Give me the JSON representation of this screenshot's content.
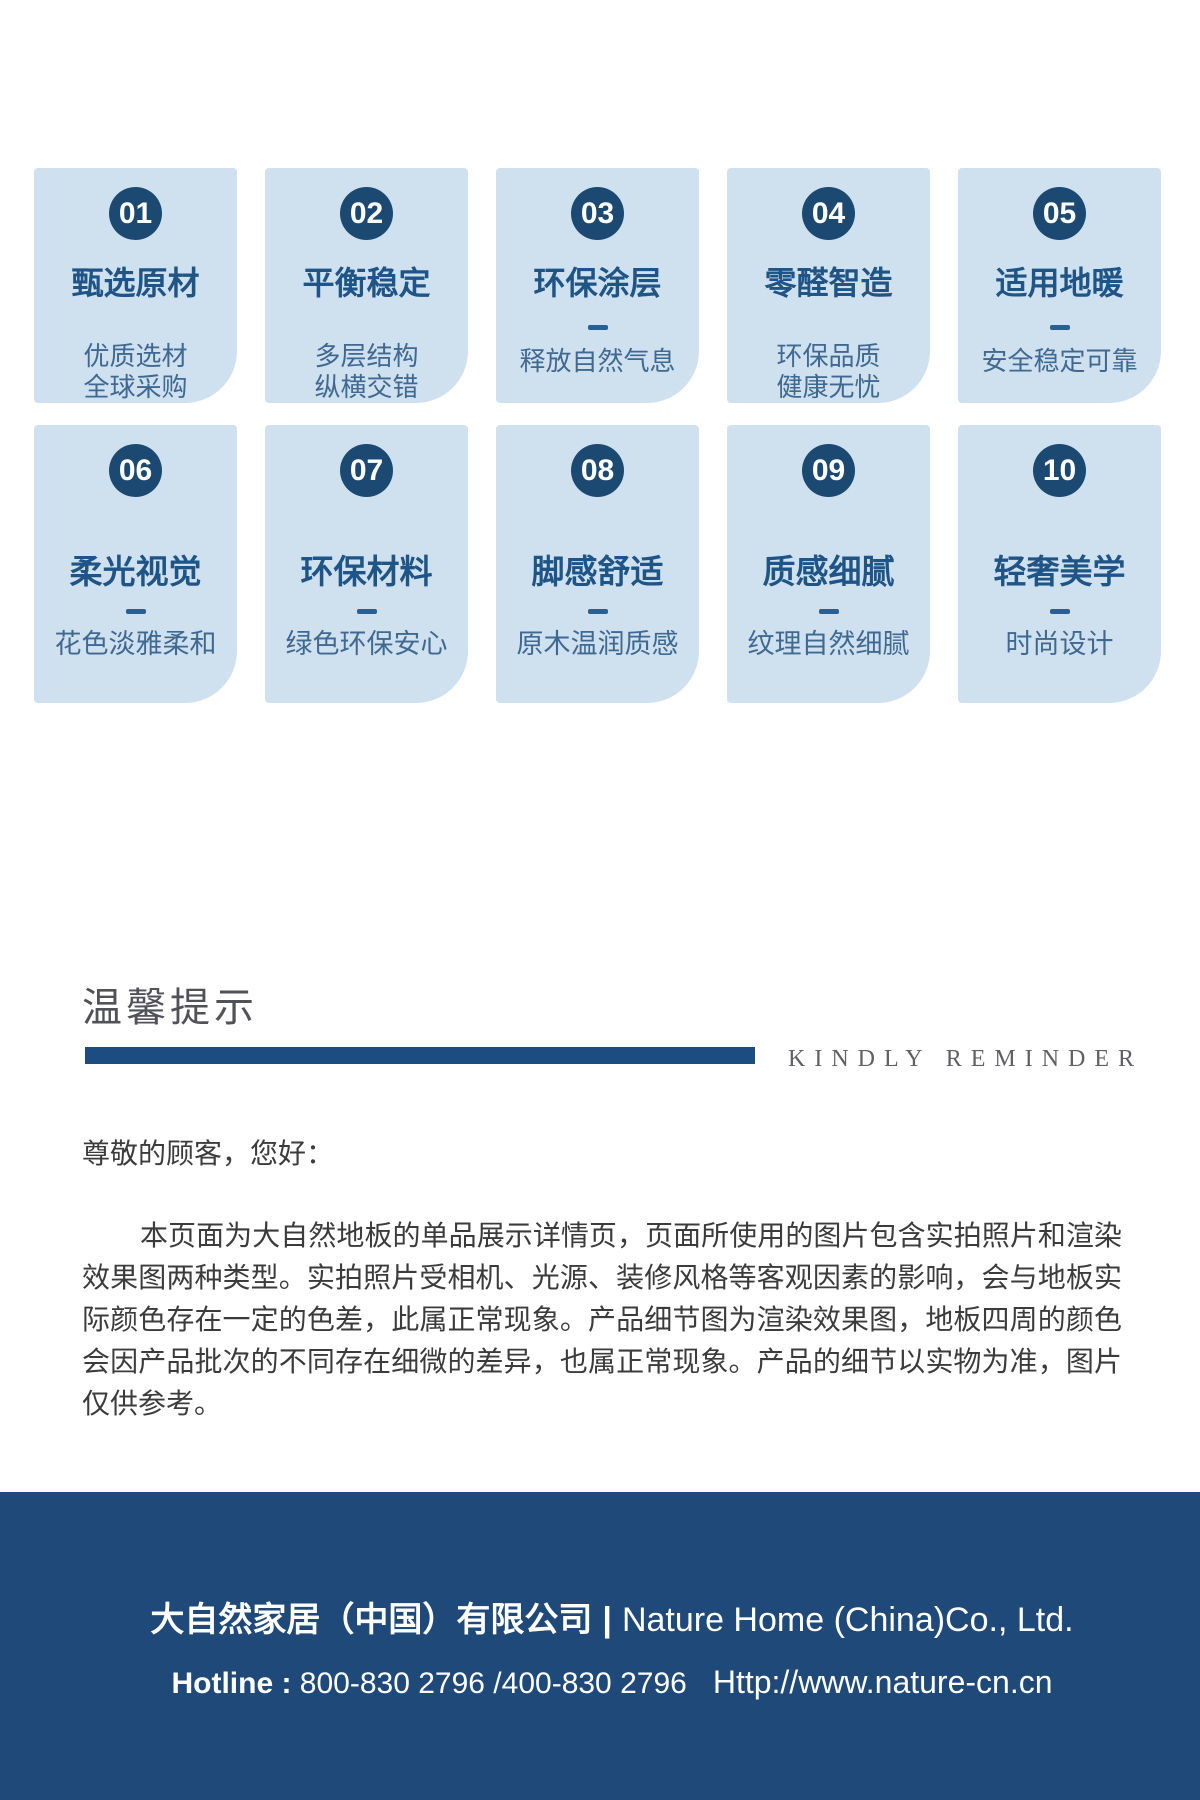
{
  "cards": [
    {
      "num": "01",
      "title": "甄选原材",
      "subtitle": "优质选材\n全球采购"
    },
    {
      "num": "02",
      "title": "平衡稳定",
      "subtitle": "多层结构\n纵横交错"
    },
    {
      "num": "03",
      "title": "环保涂层",
      "subtitle": "释放自然气息"
    },
    {
      "num": "04",
      "title": "零醛智造",
      "subtitle": "环保品质\n健康无忧"
    },
    {
      "num": "05",
      "title": "适用地暖",
      "subtitle": "安全稳定可靠"
    },
    {
      "num": "06",
      "title": "柔光视觉",
      "subtitle": "花色淡雅柔和"
    },
    {
      "num": "07",
      "title": "环保材料",
      "subtitle": "绿色环保安心"
    },
    {
      "num": "08",
      "title": "脚感舒适",
      "subtitle": "原木温润质感"
    },
    {
      "num": "09",
      "title": "质感细腻",
      "subtitle": "纹理自然细腻"
    },
    {
      "num": "10",
      "title": "轻奢美学",
      "subtitle": "时尚设计"
    }
  ],
  "reminder": {
    "title_cn": "温馨提示",
    "title_en": "KINDLY REMINDER",
    "greeting": "尊敬的顾客，您好：",
    "body": "本页面为大自然地板的单品展示详情页，页面所使用的图片包含实拍照片和渲染效果图两种类型。实拍照片受相机、光源、装修风格等客观因素的影响，会与地板实际颜色存在一定的色差，此属正常现象。产品细节图为渲染效果图，地板四周的颜色会因产品批次的不同存在细微的差异，也属正常现象。产品的细节以实物为准，图片仅供参考。"
  },
  "footer": {
    "company_cn": "大自然家居（中国）有限公司",
    "separator": "|",
    "company_en": "Nature Home (China)Co., Ltd.",
    "hotline_label": "Hotline :",
    "hotline_numbers": " 800-830 2796 /400-830 2796",
    "website": "Http://www.nature-cn.cn"
  },
  "colors": {
    "card_background": "#cfe0ee",
    "navy_circle": "#1b4971",
    "title_blue": "#1f5486",
    "subtitle_blue": "#3f6991",
    "accent_bar": "#1d4d80",
    "footer_background": "#1e4979"
  }
}
